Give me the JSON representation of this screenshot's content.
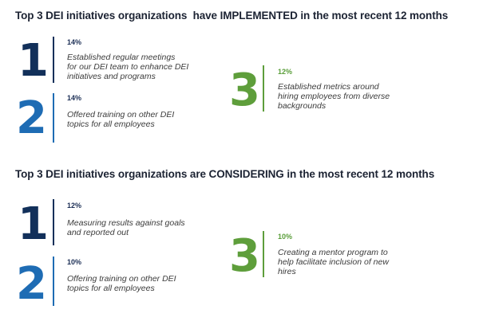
{
  "colors": {
    "navy": "#12305a",
    "blue": "#1e6cb4",
    "green": "#5e9e3b",
    "heading": "#1c2333"
  },
  "sections": [
    {
      "heading": "Top 3 DEI initiatives organizations  have IMPLEMENTED in the most recent 12 months",
      "items": [
        {
          "rank": "1",
          "percent": "14%",
          "text": "Established regular meetings\nfor our DEI team to enhance DEI\ninitiatives and programs"
        },
        {
          "rank": "2",
          "percent": "14%",
          "text": "Offered training on other DEI\ntopics for all employees"
        },
        {
          "rank": "3",
          "percent": "12%",
          "text": "Established metrics around\nhiring employees from diverse\nbackgrounds"
        }
      ]
    },
    {
      "heading": "Top 3 DEI initiatives organizations are CONSIDERING in the most recent 12 months",
      "items": [
        {
          "rank": "1",
          "percent": "12%",
          "text": "Measuring results against goals\nand reported out"
        },
        {
          "rank": "2",
          "percent": "10%",
          "text": "Offering training on other DEI\ntopics for all employees"
        },
        {
          "rank": "3",
          "percent": "10%",
          "text": "Creating a mentor program to\nhelp facilitate inclusion of new\nhires"
        }
      ]
    }
  ]
}
